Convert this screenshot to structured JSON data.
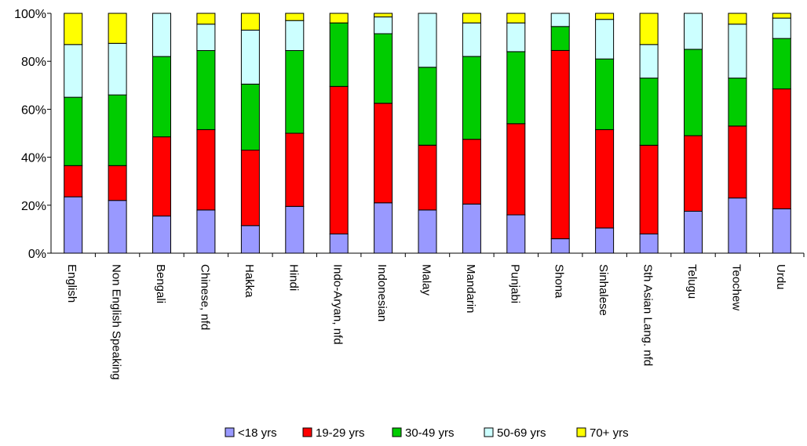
{
  "chart_data": {
    "type": "bar",
    "stacked": true,
    "percent": true,
    "title": "",
    "xlabel": "",
    "ylabel": "",
    "ylim": [
      0,
      100
    ],
    "yticks": [
      "0%",
      "20%",
      "40%",
      "60%",
      "80%",
      "100%"
    ],
    "grid": false,
    "legend_position": "bottom",
    "categories": [
      "English",
      "Non English Speaking",
      "Bengali",
      "Chinese, nfd",
      "Hakka",
      "Hindi",
      "Indo-Aryan, nfd",
      "Indonesian",
      "Malay",
      "Mandarin",
      "Punjabi",
      "Shona",
      "Sinhalese",
      "Sth Asian Lang. nfd",
      "Telugu",
      "Teochew",
      "Urdu"
    ],
    "series": [
      {
        "name": "<18 yrs",
        "color": "#9999ff",
        "values": [
          23.5,
          22,
          15.5,
          18,
          11.5,
          19.5,
          8,
          21,
          18,
          20.5,
          16,
          6,
          10.5,
          8,
          17.5,
          23,
          18.5
        ]
      },
      {
        "name": "19-29 yrs",
        "color": "#ff0000",
        "values": [
          13,
          14.5,
          33,
          33.5,
          31.5,
          30.5,
          61.5,
          41.5,
          27,
          27,
          38,
          78.5,
          41,
          37,
          31.5,
          30,
          50
        ]
      },
      {
        "name": "30-49 yrs",
        "color": "#00cc00",
        "values": [
          28.5,
          29.5,
          33.5,
          33,
          27.5,
          34.5,
          26.5,
          29,
          32.5,
          34.5,
          30,
          10,
          29.5,
          28,
          36,
          20,
          21
        ]
      },
      {
        "name": "50-69 yrs",
        "color": "#ccffff",
        "values": [
          22,
          21.5,
          18,
          11,
          22.5,
          12.5,
          0,
          7,
          22.5,
          14,
          12,
          5.5,
          16.5,
          14,
          15,
          22.5,
          8.5
        ]
      },
      {
        "name": "70+ yrs",
        "color": "#ffff00",
        "values": [
          13,
          12.5,
          0,
          4.5,
          7,
          3,
          4,
          1.5,
          0,
          4,
          4,
          0,
          2.5,
          13,
          0,
          4.5,
          2
        ]
      }
    ]
  }
}
